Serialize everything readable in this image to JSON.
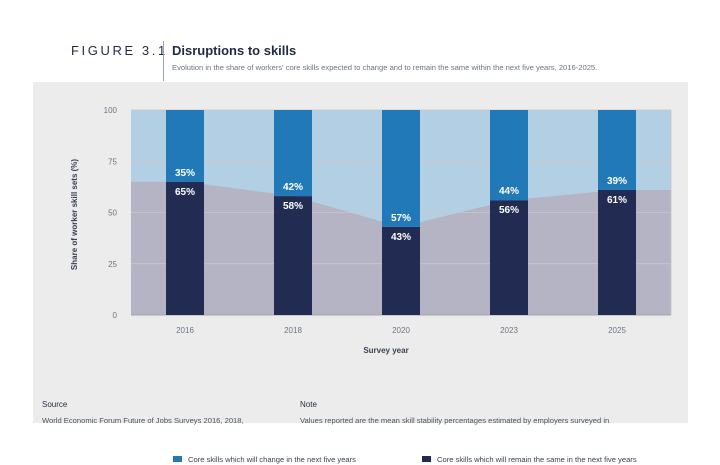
{
  "header": {
    "figure_label": "FIGURE 3.1",
    "title": "Disruptions to skills",
    "subtitle": "Evolution in the share of workers' core skills expected to change and to remain the same within the next five years, 2016-2025."
  },
  "colors": {
    "change": "#2279b8",
    "change_area": "#b3cfe3",
    "same": "#222b52",
    "same_area": "#b4b4c4",
    "grid": "#c9c9c9",
    "axis_text": "#6b7385"
  },
  "chart_data": {
    "type": "bar",
    "stacked": true,
    "categories": [
      "2016",
      "2018",
      "2020",
      "2023",
      "2025"
    ],
    "series": [
      {
        "name": "Core skills which will remain the same in the next five years",
        "values": [
          65,
          58,
          43,
          56,
          61
        ],
        "labels": [
          "65%",
          "58%",
          "43%",
          "56%",
          "61%"
        ]
      },
      {
        "name": "Core skills which will change in the next five years",
        "values": [
          35,
          42,
          57,
          44,
          39
        ],
        "labels": [
          "35%",
          "42%",
          "57%",
          "44%",
          "39%"
        ]
      }
    ],
    "xlabel": "Survey year",
    "ylabel": "Share of worker skill sets (%)",
    "ylim": [
      0,
      100
    ],
    "yticks": [
      "0",
      "25",
      "50",
      "75",
      "100"
    ],
    "grid": true,
    "legend": "bottom"
  },
  "legend": {
    "change_label": "Core skills which will change in the next five years",
    "same_label": "Core skills which will remain the same in the next five years"
  },
  "footer": {
    "source_heading": "Source",
    "source_text": "World Economic Forum Future of Jobs Surveys 2016, 2018,",
    "note_heading": "Note",
    "note_text": "Values reported are the mean skill stability percentages estimated by employers surveyed in"
  }
}
